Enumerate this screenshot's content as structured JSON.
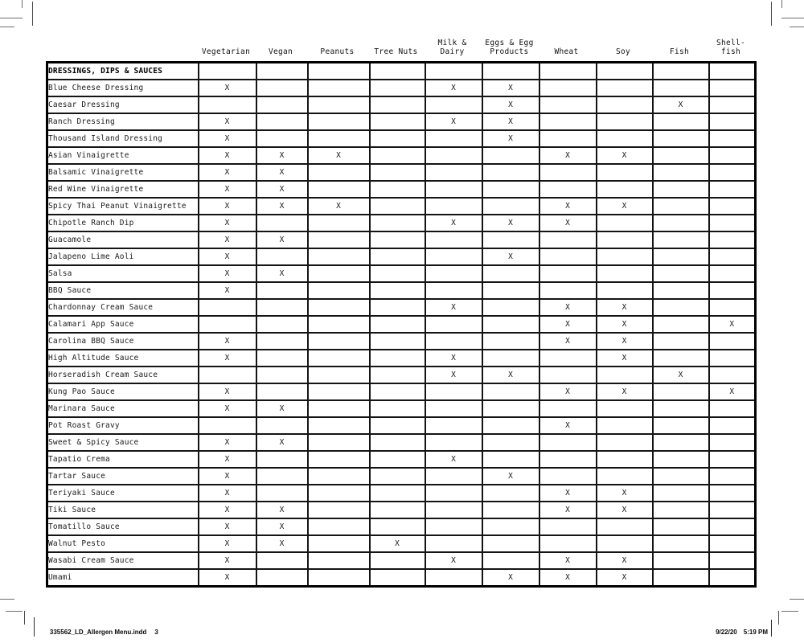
{
  "colors": {
    "ink": "#000000",
    "grid_line": "#141414",
    "mark_x": "#3d3d3d",
    "crop_mark": "#6e6e6e",
    "background": "#ffffff"
  },
  "header": {
    "columns": [
      "Vegetarian",
      "Vegan",
      "Peanuts",
      "Tree Nuts",
      "Milk &\nDairy",
      "Eggs & Egg\nProducts",
      "Wheat",
      "Soy",
      "Fish",
      "Shell-\nfish"
    ]
  },
  "table": {
    "section_title": "DRESSINGS, DIPS & SAUCES",
    "mark_symbol": "X",
    "rows": [
      {
        "name": "Blue Cheese Dressing",
        "allergens": [
          1,
          0,
          0,
          0,
          1,
          1,
          0,
          0,
          0,
          0
        ]
      },
      {
        "name": "Caesar Dressing",
        "allergens": [
          0,
          0,
          0,
          0,
          0,
          1,
          0,
          0,
          1,
          0
        ]
      },
      {
        "name": "Ranch Dressing",
        "allergens": [
          1,
          0,
          0,
          0,
          1,
          1,
          0,
          0,
          0,
          0
        ]
      },
      {
        "name": "Thousand Island Dressing",
        "allergens": [
          1,
          0,
          0,
          0,
          0,
          1,
          0,
          0,
          0,
          0
        ]
      },
      {
        "name": "Asian Vinaigrette",
        "allergens": [
          1,
          1,
          1,
          0,
          0,
          0,
          1,
          1,
          0,
          0
        ]
      },
      {
        "name": "Balsamic Vinaigrette",
        "allergens": [
          1,
          1,
          0,
          0,
          0,
          0,
          0,
          0,
          0,
          0
        ]
      },
      {
        "name": "Red Wine Vinaigrette",
        "allergens": [
          1,
          1,
          0,
          0,
          0,
          0,
          0,
          0,
          0,
          0
        ]
      },
      {
        "name": "Spicy Thai Peanut Vinaigrette",
        "allergens": [
          1,
          1,
          1,
          0,
          0,
          0,
          1,
          1,
          0,
          0
        ]
      },
      {
        "name": "Chipotle Ranch Dip",
        "allergens": [
          1,
          0,
          0,
          0,
          1,
          1,
          1,
          0,
          0,
          0
        ]
      },
      {
        "name": "Guacamole",
        "allergens": [
          1,
          1,
          0,
          0,
          0,
          0,
          0,
          0,
          0,
          0
        ]
      },
      {
        "name": "Jalapeno Lime Aoli",
        "allergens": [
          1,
          0,
          0,
          0,
          0,
          1,
          0,
          0,
          0,
          0
        ]
      },
      {
        "name": "Salsa",
        "allergens": [
          1,
          1,
          0,
          0,
          0,
          0,
          0,
          0,
          0,
          0
        ]
      },
      {
        "name": "BBQ Sauce",
        "allergens": [
          1,
          0,
          0,
          0,
          0,
          0,
          0,
          0,
          0,
          0
        ]
      },
      {
        "name": "Chardonnay Cream Sauce",
        "allergens": [
          0,
          0,
          0,
          0,
          1,
          0,
          1,
          1,
          0,
          0
        ]
      },
      {
        "name": "Calamari App Sauce",
        "allergens": [
          0,
          0,
          0,
          0,
          0,
          0,
          1,
          1,
          0,
          1
        ]
      },
      {
        "name": "Carolina BBQ Sauce",
        "allergens": [
          1,
          0,
          0,
          0,
          0,
          0,
          1,
          1,
          0,
          0
        ]
      },
      {
        "name": "High Altitude Sauce",
        "allergens": [
          1,
          0,
          0,
          0,
          1,
          0,
          0,
          1,
          0,
          0
        ]
      },
      {
        "name": "Horseradish Cream Sauce",
        "allergens": [
          0,
          0,
          0,
          0,
          1,
          1,
          0,
          0,
          1,
          0
        ]
      },
      {
        "name": "Kung Pao Sauce",
        "allergens": [
          1,
          0,
          0,
          0,
          0,
          0,
          1,
          1,
          0,
          1
        ]
      },
      {
        "name": "Marinara Sauce",
        "allergens": [
          1,
          1,
          0,
          0,
          0,
          0,
          0,
          0,
          0,
          0
        ]
      },
      {
        "name": "Pot Roast Gravy",
        "allergens": [
          0,
          0,
          0,
          0,
          0,
          0,
          1,
          0,
          0,
          0
        ]
      },
      {
        "name": "Sweet & Spicy Sauce",
        "allergens": [
          1,
          1,
          0,
          0,
          0,
          0,
          0,
          0,
          0,
          0
        ]
      },
      {
        "name": "Tapatio Crema",
        "allergens": [
          1,
          0,
          0,
          0,
          1,
          0,
          0,
          0,
          0,
          0
        ]
      },
      {
        "name": "Tartar Sauce",
        "allergens": [
          1,
          0,
          0,
          0,
          0,
          1,
          0,
          0,
          0,
          0
        ]
      },
      {
        "name": "Teriyaki Sauce",
        "allergens": [
          1,
          0,
          0,
          0,
          0,
          0,
          1,
          1,
          0,
          0
        ]
      },
      {
        "name": "Tiki Sauce",
        "allergens": [
          1,
          1,
          0,
          0,
          0,
          0,
          1,
          1,
          0,
          0
        ]
      },
      {
        "name": "Tomatillo Sauce",
        "allergens": [
          1,
          1,
          0,
          0,
          0,
          0,
          0,
          0,
          0,
          0
        ]
      },
      {
        "name": "Walnut Pesto",
        "allergens": [
          1,
          1,
          0,
          1,
          0,
          0,
          0,
          0,
          0,
          0
        ]
      },
      {
        "name": "Wasabi Cream Sauce",
        "allergens": [
          1,
          0,
          0,
          0,
          1,
          0,
          1,
          1,
          0,
          0
        ]
      },
      {
        "name": "Umami",
        "allergens": [
          1,
          0,
          0,
          0,
          0,
          1,
          1,
          1,
          0,
          0
        ]
      }
    ]
  },
  "footer": {
    "left_filename": "335562_LD_Allergen Menu.indd",
    "left_page": "3",
    "right_date": "9/22/20",
    "right_time": "5:19 PM"
  }
}
